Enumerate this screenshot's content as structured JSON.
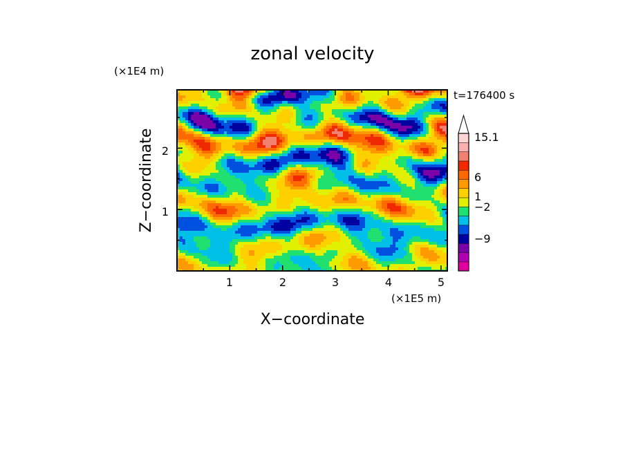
{
  "chart_data": {
    "type": "heatmap",
    "title": "zonal velocity",
    "xlabel": "X−coordinate",
    "ylabel": "Z−coordinate",
    "x_unit": "(×1E5 m)",
    "y_unit": "(×1E4 m)",
    "time_label": "t=176400 s",
    "x_ticks": [
      "1",
      "2",
      "3",
      "4",
      "5"
    ],
    "y_ticks": [
      "1",
      "2"
    ],
    "xlim": [
      0,
      5.12
    ],
    "ylim": [
      0,
      2.95
    ],
    "colorbar": {
      "labels": [
        "15.1",
        "6",
        "1",
        "−2",
        "−9"
      ],
      "colors": [
        "#e000a0",
        "#b000b0",
        "#7a00a8",
        "#0000a0",
        "#0050e0",
        "#00c0e8",
        "#20e070",
        "#e0f000",
        "#ffd000",
        "#ff9a00",
        "#ff6a00",
        "#f02a00",
        "#f08070",
        "#f8b0b0",
        "#ffd6d6",
        "#ffffff"
      ],
      "extend": "max"
    },
    "pattern_note_omitted": true
  }
}
